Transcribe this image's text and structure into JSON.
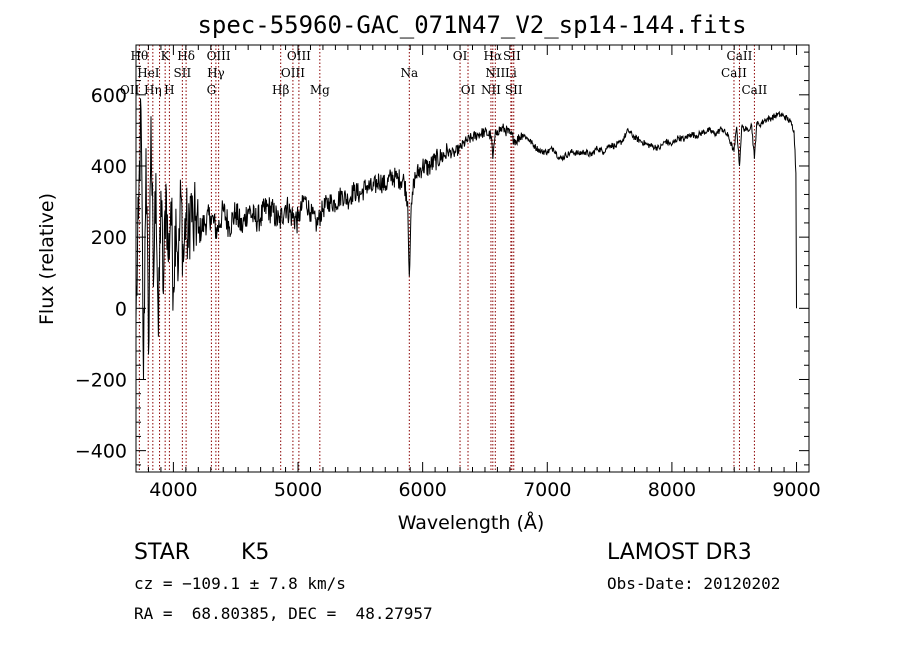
{
  "chart_data": {
    "type": "line",
    "title": "spec-55960-GAC_071N47_V2_sp14-144.fits",
    "xlabel": "Wavelength (Å)",
    "ylabel": "Flux (relative)",
    "xlim": [
      3700,
      9100
    ],
    "ylim": [
      -460,
      740
    ],
    "x_ticks": [
      4000,
      5000,
      6000,
      7000,
      8000,
      9000
    ],
    "y_ticks": [
      -400,
      -200,
      0,
      200,
      400,
      600
    ],
    "x_minor_step": 100,
    "y_minor_step": 40,
    "grid": false,
    "line_color": "#8b0000",
    "series": [
      {
        "name": "Flux",
        "x": [
          3700,
          3720,
          3740,
          3760,
          3780,
          3800,
          3820,
          3840,
          3860,
          3880,
          3900,
          3920,
          3940,
          3960,
          3980,
          4000,
          4020,
          4040,
          4060,
          4080,
          4100,
          4120,
          4140,
          4160,
          4180,
          4200,
          4250,
          4300,
          4350,
          4400,
          4450,
          4500,
          4550,
          4600,
          4650,
          4700,
          4750,
          4800,
          4850,
          4900,
          4950,
          5000,
          5050,
          5100,
          5150,
          5200,
          5250,
          5300,
          5350,
          5400,
          5450,
          5500,
          5550,
          5600,
          5650,
          5700,
          5750,
          5800,
          5850,
          5880,
          5893,
          5905,
          5930,
          5950,
          6000,
          6050,
          6100,
          6150,
          6200,
          6250,
          6300,
          6350,
          6400,
          6450,
          6500,
          6550,
          6563,
          6580,
          6600,
          6650,
          6700,
          6750,
          6800,
          6850,
          6900,
          6950,
          7000,
          7050,
          7100,
          7150,
          7200,
          7250,
          7300,
          7350,
          7400,
          7450,
          7500,
          7550,
          7600,
          7650,
          7700,
          7750,
          7800,
          7850,
          7900,
          7950,
          8000,
          8050,
          8100,
          8150,
          8200,
          8250,
          8300,
          8350,
          8400,
          8450,
          8498,
          8520,
          8542,
          8560,
          8600,
          8640,
          8662,
          8680,
          8700,
          8750,
          8800,
          8850,
          8900,
          8950,
          8980,
          8995,
          9000
        ],
        "values": [
          -30,
          250,
          560,
          -200,
          450,
          -130,
          540,
          60,
          380,
          -80,
          330,
          40,
          350,
          130,
          300,
          60,
          280,
          110,
          320,
          130,
          270,
          170,
          310,
          200,
          260,
          210,
          240,
          260,
          215,
          275,
          230,
          270,
          225,
          280,
          250,
          255,
          285,
          270,
          240,
          290,
          260,
          245,
          310,
          270,
          235,
          280,
          300,
          295,
          320,
          305,
          330,
          320,
          345,
          335,
          360,
          345,
          370,
          365,
          360,
          300,
          90,
          250,
          360,
          375,
          400,
          395,
          415,
          425,
          440,
          435,
          450,
          470,
          480,
          490,
          495,
          485,
          420,
          480,
          500,
          505,
          490,
          470,
          490,
          475,
          455,
          440,
          440,
          450,
          420,
          430,
          440,
          435,
          440,
          430,
          450,
          440,
          460,
          455,
          470,
          500,
          480,
          470,
          460,
          455,
          450,
          470,
          460,
          480,
          475,
          490,
          485,
          495,
          500,
          490,
          505,
          485,
          440,
          510,
          400,
          510,
          500,
          515,
          420,
          520,
          515,
          530,
          535,
          545,
          540,
          525,
          500,
          380,
          0
        ]
      }
    ],
    "lines": [
      {
        "name": "OII",
        "wl": 3727,
        "row": 2,
        "anchor": "end"
      },
      {
        "name": "Hθ",
        "wl": 3798,
        "row": 0,
        "anchor": "end"
      },
      {
        "name": "Hη",
        "wl": 3835,
        "row": 2,
        "anchor": "middle"
      },
      {
        "name": "HeI",
        "wl": 3889,
        "row": 1,
        "anchor": "end"
      },
      {
        "name": "K",
        "wl": 3934,
        "row": 0,
        "anchor": "middle"
      },
      {
        "name": "H",
        "wl": 3968,
        "row": 2,
        "anchor": "middle"
      },
      {
        "name": "SII",
        "wl": 4072,
        "row": 1,
        "anchor": "middle"
      },
      {
        "name": "Hδ",
        "wl": 4102,
        "row": 0,
        "anchor": "middle"
      },
      {
        "name": "G",
        "wl": 4305,
        "row": 2,
        "anchor": "middle"
      },
      {
        "name": "Hγ",
        "wl": 4341,
        "row": 1,
        "anchor": "middle"
      },
      {
        "name": "OIII",
        "wl": 4363,
        "row": 0,
        "anchor": "middle"
      },
      {
        "name": "Hβ",
        "wl": 4861,
        "row": 2,
        "anchor": "middle"
      },
      {
        "name": "OIII",
        "wl": 4959,
        "row": 1,
        "anchor": "middle"
      },
      {
        "name": "OIII",
        "wl": 5007,
        "row": 0,
        "anchor": "middle"
      },
      {
        "name": "Mg",
        "wl": 5175,
        "row": 2,
        "anchor": "middle"
      },
      {
        "name": "Na",
        "wl": 5893,
        "row": 1,
        "anchor": "middle"
      },
      {
        "name": "OI",
        "wl": 6300,
        "row": 0,
        "anchor": "middle"
      },
      {
        "name": "OI",
        "wl": 6364,
        "row": 2,
        "anchor": "middle"
      },
      {
        "name": "NII",
        "wl": 6548,
        "row": 2,
        "anchor": "middle"
      },
      {
        "name": "Hα",
        "wl": 6563,
        "row": 0,
        "anchor": "middle"
      },
      {
        "name": "NII",
        "wl": 6583,
        "row": 1,
        "anchor": "middle"
      },
      {
        "name": "Li",
        "wl": 6708,
        "row": 1,
        "anchor": "middle"
      },
      {
        "name": "SII",
        "wl": 6716,
        "row": 0,
        "anchor": "middle"
      },
      {
        "name": "SII",
        "wl": 6731,
        "row": 2,
        "anchor": "middle"
      },
      {
        "name": "CaII",
        "wl": 8498,
        "row": 1,
        "anchor": "middle"
      },
      {
        "name": "CaII",
        "wl": 8542,
        "row": 0,
        "anchor": "middle"
      },
      {
        "name": "CaII",
        "wl": 8662,
        "row": 2,
        "anchor": "middle"
      }
    ]
  },
  "info": {
    "class": "STAR",
    "subclass": "K5",
    "survey": "LAMOST DR3",
    "cz": "cz = −109.1 ± 7.8 km/s",
    "obs_date": "Obs-Date: 20120202",
    "coords": "RA =  68.80385, DEC =  48.27957"
  }
}
